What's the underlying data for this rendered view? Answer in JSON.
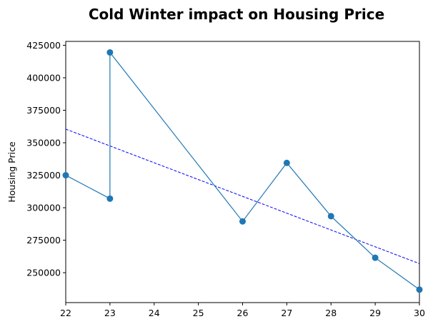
{
  "chart_data": {
    "type": "line",
    "title": "Cold Winter impact on Housing Price",
    "xlabel": "",
    "ylabel": "Housing Price",
    "xlim": [
      22,
      30
    ],
    "ylim": [
      227000,
      428000
    ],
    "x_ticks": [
      22,
      23,
      24,
      25,
      26,
      27,
      28,
      29,
      30
    ],
    "y_ticks": [
      250000,
      275000,
      300000,
      325000,
      350000,
      375000,
      400000,
      425000
    ],
    "grid": false,
    "series": [
      {
        "x": [
          22,
          23,
          23,
          26,
          27,
          28,
          29,
          30
        ],
        "y": [
          325000,
          307000,
          419500,
          289500,
          334500,
          293500,
          261500,
          237000
        ],
        "color": "#1f77b4",
        "marker": "circle",
        "line_style": "solid"
      }
    ],
    "trendline": {
      "x": [
        22,
        30
      ],
      "y": [
        360500,
        257000
      ],
      "color": "#0000ff",
      "line_style": "dashed"
    }
  }
}
